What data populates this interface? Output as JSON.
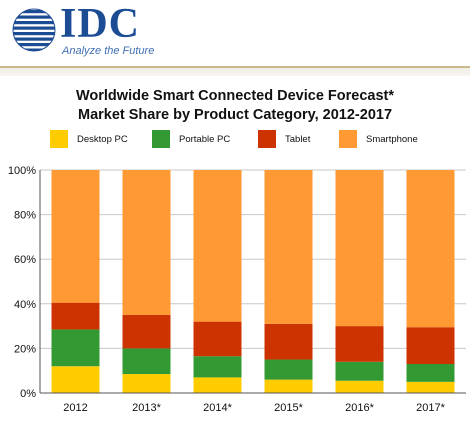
{
  "header": {
    "logo_text": "IDC",
    "tagline": "Analyze the Future",
    "brand_color": "#1c4c94"
  },
  "chart_data": {
    "type": "bar",
    "stacked": true,
    "title_line1": "Worldwide Smart Connected Device Forecast*",
    "title_line2": "Market Share by Product Category, 2012-2017",
    "categories": [
      "2012",
      "2013*",
      "2014*",
      "2015*",
      "2016*",
      "2017*"
    ],
    "series": [
      {
        "name": "Desktop PC",
        "color": "#ffcc00",
        "values": [
          12,
          8.5,
          7,
          6,
          5.5,
          5
        ]
      },
      {
        "name": "Portable PC",
        "color": "#339933",
        "values": [
          16.5,
          11.5,
          9.5,
          9,
          8.5,
          8
        ]
      },
      {
        "name": "Tablet",
        "color": "#cc3300",
        "values": [
          12,
          15,
          15.5,
          16,
          16,
          16.5
        ]
      },
      {
        "name": "Smartphone",
        "color": "#ff9933",
        "values": [
          59.5,
          65,
          68,
          69,
          70,
          70.5
        ]
      }
    ],
    "yticks": [
      "0%",
      "20%",
      "40%",
      "60%",
      "80%",
      "100%"
    ],
    "ytick_values": [
      0,
      20,
      40,
      60,
      80,
      100
    ],
    "ylim": [
      0,
      100
    ],
    "grid": true,
    "legend_position": "top"
  }
}
